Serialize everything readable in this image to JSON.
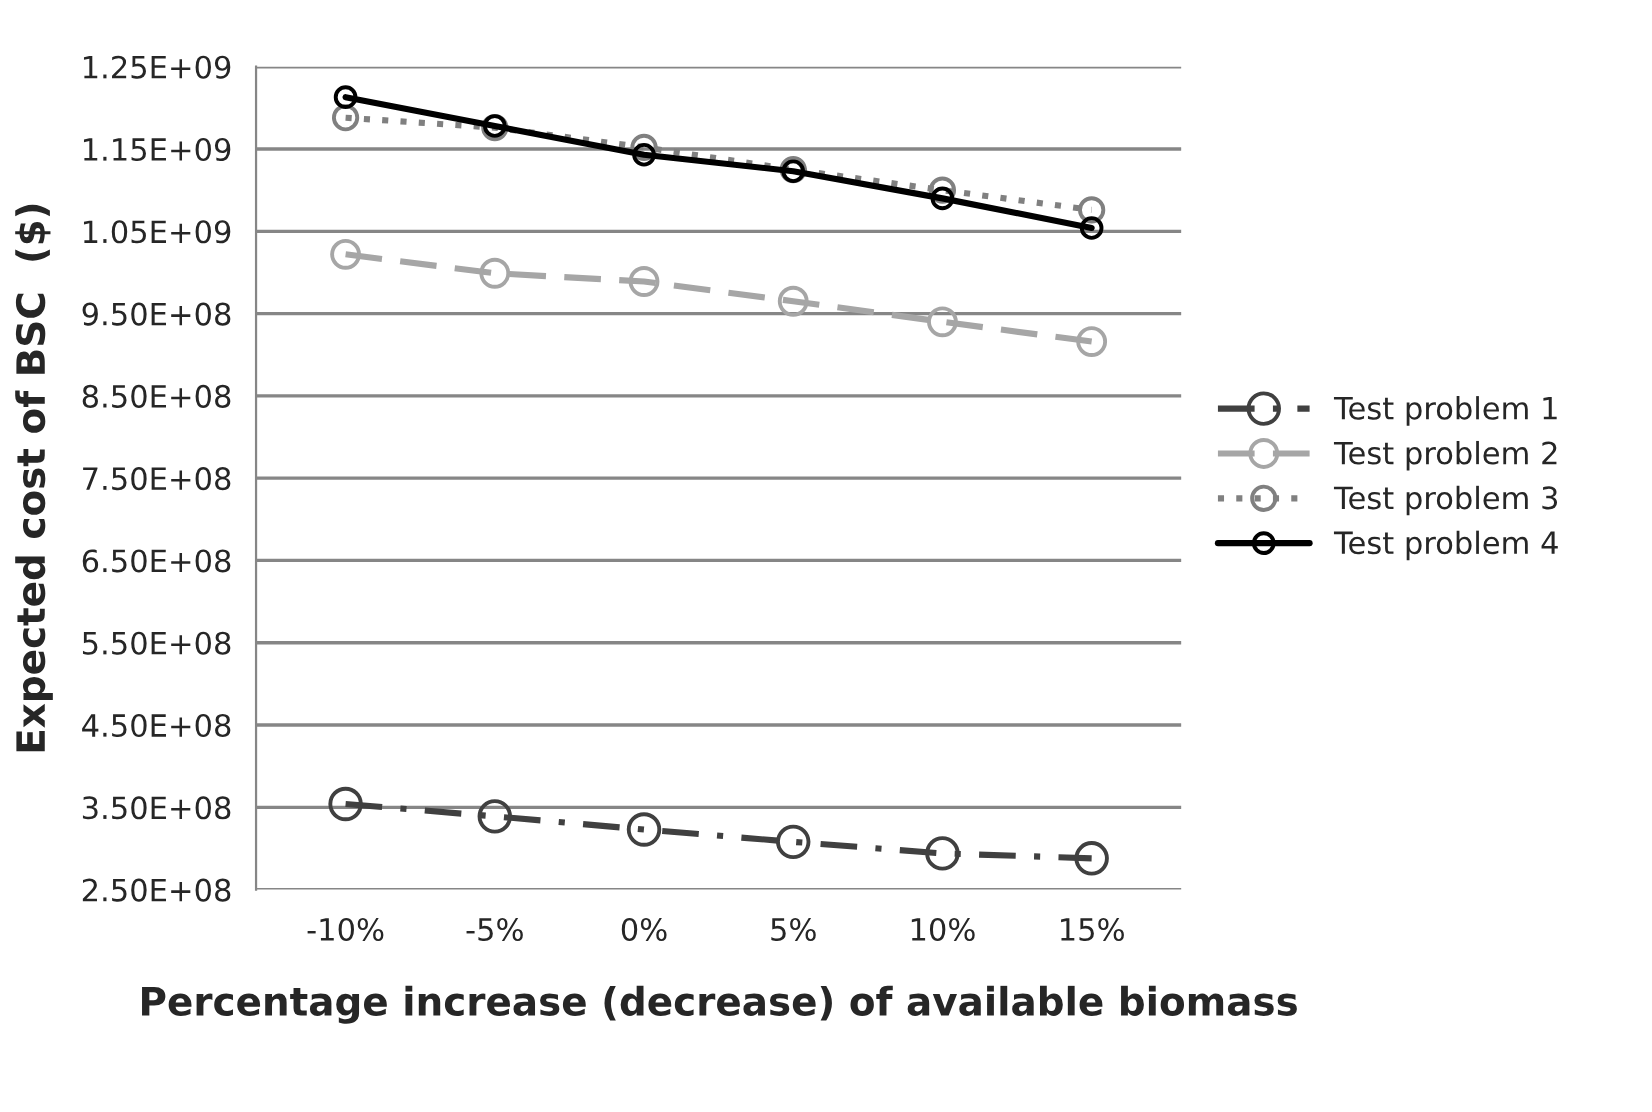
{
  "chart_data": {
    "type": "line",
    "xlabel": "Percentage increase (decrease) of available biomass",
    "ylabel": "Expected cost of BSC  ($)",
    "categories": [
      "-10%",
      "-5%",
      "0%",
      "5%",
      "10%",
      "15%"
    ],
    "series": [
      {
        "name": "Test problem 1",
        "color": "#404040",
        "line_style": "dashdot",
        "values": [
          354000000,
          339000000,
          323000000,
          308000000,
          294000000,
          288000000
        ]
      },
      {
        "name": "Test problem 2",
        "color": "#a6a6a6",
        "line_style": "dashed",
        "values": [
          1022000000,
          999000000,
          989000000,
          965000000,
          940000000,
          916000000
        ]
      },
      {
        "name": "Test problem 3",
        "color": "#808080",
        "line_style": "dotted",
        "values": [
          1188000000,
          1176000000,
          1152000000,
          1125000000,
          1100000000,
          1076000000
        ]
      },
      {
        "name": "Test problem 4",
        "color": "#000000",
        "line_style": "solid",
        "values": [
          1213000000,
          1178000000,
          1143000000,
          1123000000,
          1090000000,
          1054000000
        ]
      }
    ],
    "ylim": [
      250000000,
      1250000000
    ],
    "yticks": [
      {
        "value": 250000000,
        "label": "2.50E+08"
      },
      {
        "value": 350000000,
        "label": "3.50E+08"
      },
      {
        "value": 450000000,
        "label": "4.50E+08"
      },
      {
        "value": 550000000,
        "label": "5.50E+08"
      },
      {
        "value": 650000000,
        "label": "6.50E+08"
      },
      {
        "value": 750000000,
        "label": "7.50E+08"
      },
      {
        "value": 850000000,
        "label": "8.50E+08"
      },
      {
        "value": 950000000,
        "label": "9.50E+08"
      },
      {
        "value": 1050000000,
        "label": "1.05E+09"
      },
      {
        "value": 1150000000,
        "label": "1.15E+09"
      },
      {
        "value": 1250000000,
        "label": "1.25E+09"
      }
    ],
    "grid": "y",
    "legend": "right",
    "marker": "circle"
  }
}
